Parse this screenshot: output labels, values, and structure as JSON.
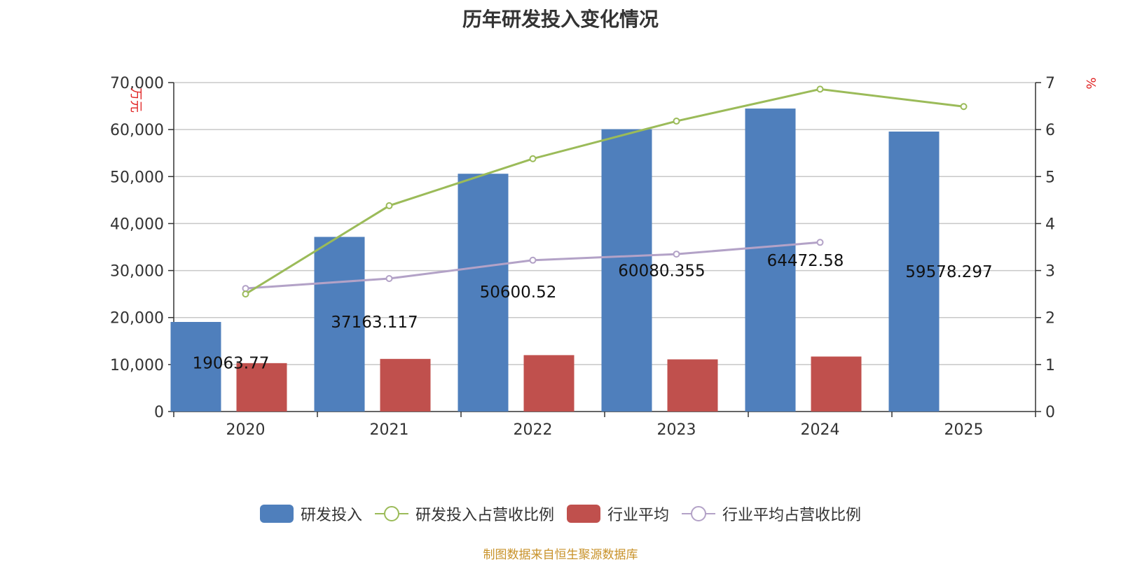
{
  "title": "历年研发投入变化情况",
  "source_note": "制图数据来自恒生聚源数据库",
  "colors": {
    "rd_bar": "#4f7fbc",
    "industry_bar": "#c0504d",
    "rd_ratio_line": "#9bbb59",
    "industry_ratio_line": "#b3a2c7",
    "axis": "#333333",
    "grid": "#c8c8c8",
    "unit_label": "#e02020"
  },
  "chart_data": {
    "type": "bar",
    "title": "历年研发投入变化情况",
    "categories": [
      "2020",
      "2021",
      "2022",
      "2023",
      "2024",
      "2025"
    ],
    "y_left": {
      "unit": "万元",
      "ylim": [
        0,
        70000
      ],
      "ticks": [
        "0",
        "10,000",
        "20,000",
        "30,000",
        "40,000",
        "50,000",
        "60,000",
        "70,000"
      ]
    },
    "y_right": {
      "unit": "%",
      "ylim": [
        0,
        7
      ],
      "ticks": [
        "0",
        "1",
        "2",
        "3",
        "4",
        "5",
        "6",
        "7"
      ]
    },
    "grid": true,
    "legend_position": "bottom",
    "series": [
      {
        "name": "研发投入",
        "kind": "bar",
        "axis": "left",
        "values": [
          19063.77,
          37163.117,
          50600.52,
          60080.355,
          64472.58,
          59578.297
        ],
        "data_labels": [
          "19063.77",
          "37163.117",
          "50600.52",
          "60080.355",
          "64472.58",
          "59578.297"
        ]
      },
      {
        "name": "研发投入占营收比例",
        "kind": "line",
        "axis": "right",
        "values": [
          2.5,
          4.38,
          5.38,
          6.18,
          6.86,
          6.49
        ]
      },
      {
        "name": "行业平均",
        "kind": "bar",
        "axis": "left",
        "values": [
          10300,
          11200,
          12000,
          11100,
          11700,
          null
        ]
      },
      {
        "name": "行业平均占营收比例",
        "kind": "line",
        "axis": "right",
        "values": [
          2.62,
          2.83,
          3.22,
          3.35,
          3.6,
          null
        ]
      }
    ]
  }
}
